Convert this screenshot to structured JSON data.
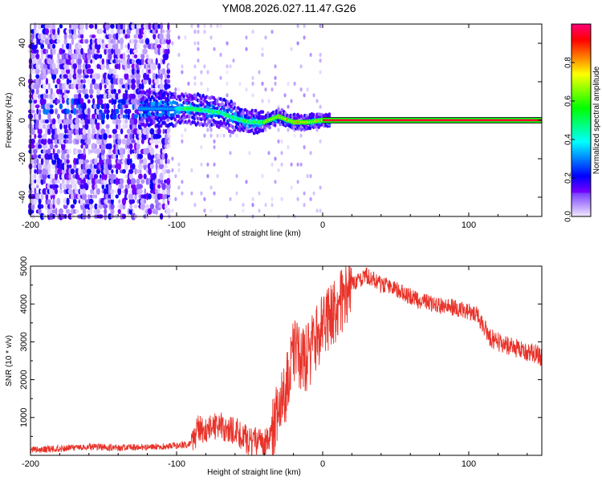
{
  "page": {
    "title": "YM08.2026.027.11.47.G26"
  },
  "chart_data": [
    {
      "type": "heatmap",
      "title": "YM08.2026.027.11.47.G26",
      "xlabel": "Height of straight line (km)",
      "ylabel": "Frequency (Hz)",
      "xlim": [
        -200,
        150
      ],
      "ylim": [
        -50,
        50
      ],
      "xticks": [
        -200,
        -100,
        0,
        100
      ],
      "yticks": [
        -40,
        -20,
        0,
        20,
        40
      ],
      "colorbar": {
        "label": "Normalized spectral amplitude",
        "range": [
          0,
          1
        ],
        "ticks": [
          0.0,
          0.2,
          0.4,
          0.6,
          0.8
        ]
      },
      "dominant_frequency_track": {
        "x": [
          -125,
          -100,
          -90,
          -80,
          -70,
          -60,
          -50,
          -40,
          -30,
          -20,
          -10,
          0,
          150
        ],
        "y": [
          6,
          6,
          6,
          5,
          4,
          1,
          -1,
          -1,
          2,
          -1,
          -1,
          0,
          0
        ]
      }
    },
    {
      "type": "line",
      "xlabel": "Height of straight line (km)",
      "ylabel": "SNR (10 * v/v)",
      "xlim": [
        -200,
        150
      ],
      "ylim": [
        0,
        5000
      ],
      "xticks": [
        -200,
        -100,
        0,
        100
      ],
      "yticks": [
        1000,
        2000,
        3000,
        4000,
        5000
      ],
      "color": "#e8332a",
      "series": [
        {
          "x": [
            -200,
            -180,
            -160,
            -140,
            -120,
            -100,
            -90,
            -85,
            -80,
            -75,
            -70,
            -65,
            -60,
            -55,
            -50,
            -45,
            -40,
            -35,
            -30,
            -25,
            -20,
            -15,
            -10,
            -5,
            0,
            5,
            10,
            15,
            20,
            25,
            30,
            35,
            40,
            45,
            50,
            55,
            60,
            65,
            70,
            75,
            80,
            85,
            90,
            95,
            100,
            105,
            110,
            115,
            120,
            125,
            130,
            135,
            140,
            145,
            150
          ],
          "y": [
            150,
            180,
            230,
            200,
            220,
            250,
            300,
            700,
            650,
            750,
            800,
            700,
            650,
            500,
            350,
            400,
            300,
            500,
            1500,
            1700,
            2800,
            2500,
            2600,
            3000,
            3400,
            3700,
            3900,
            4200,
            4500,
            4650,
            4750,
            4650,
            4500,
            4500,
            4400,
            4300,
            4200,
            4100,
            4050,
            4000,
            3950,
            3950,
            3900,
            3850,
            3800,
            3750,
            3400,
            3100,
            3000,
            2900,
            2850,
            2800,
            2750,
            2700,
            2600
          ]
        }
      ]
    }
  ]
}
